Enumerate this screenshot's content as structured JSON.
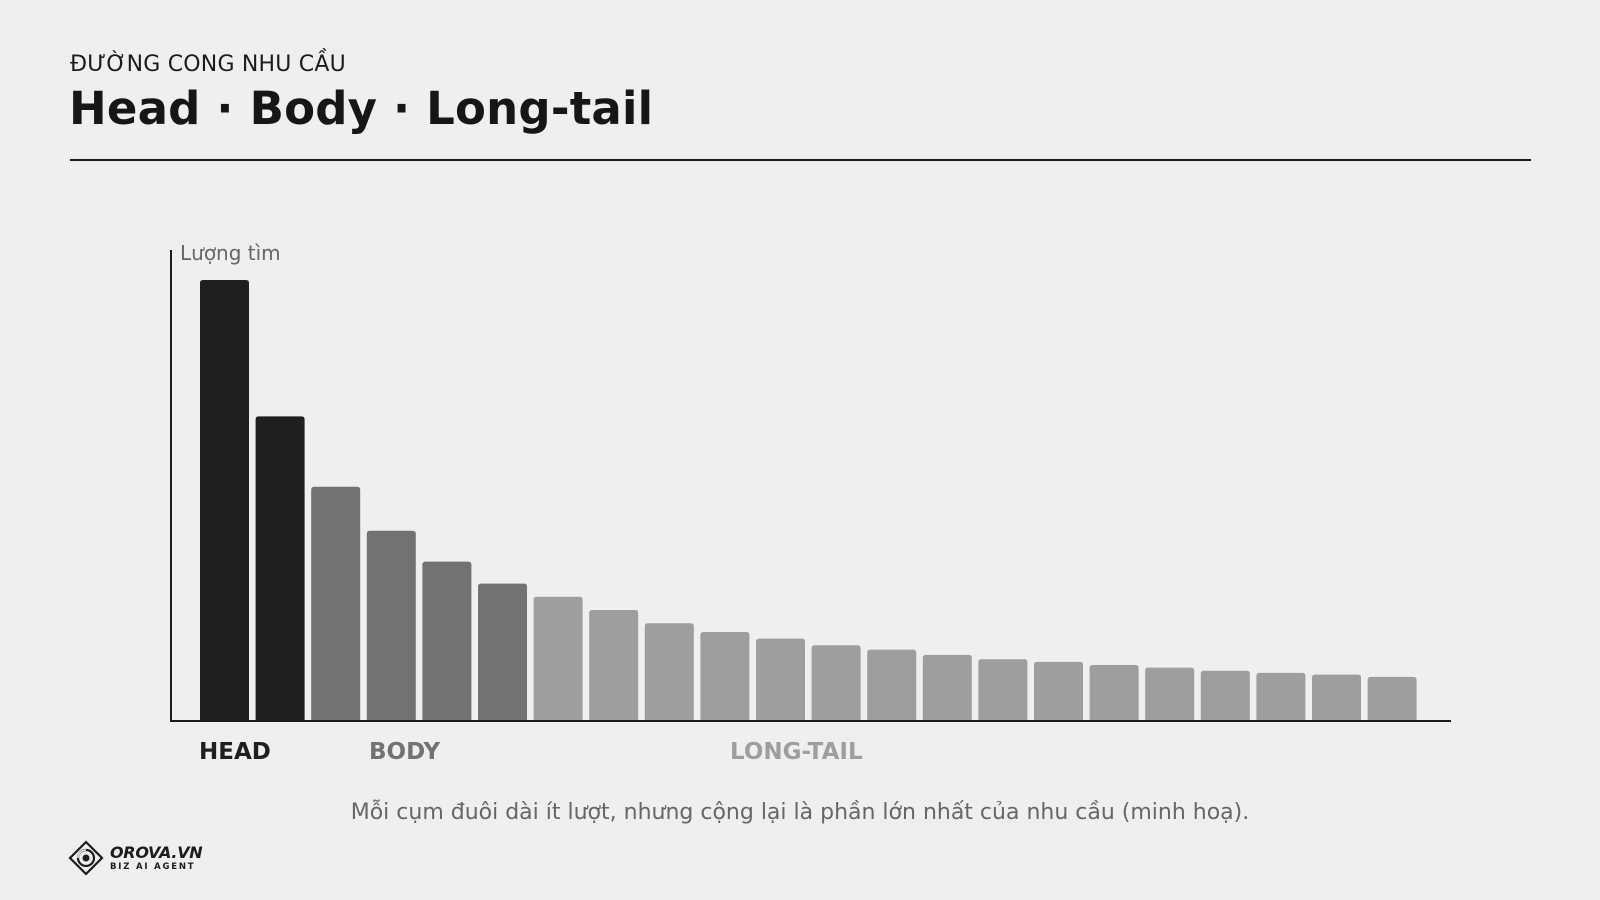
{
  "header": {
    "eyebrow": "ĐƯỜNG CONG NHU CẦU",
    "title": "Head · Body · Long-tail"
  },
  "chart_data": {
    "type": "bar",
    "title": "",
    "xlabel": "",
    "ylabel": "Lượng tìm",
    "values": [
      100,
      69,
      53,
      43,
      36,
      31,
      28,
      25,
      22,
      20,
      18.5,
      17,
      16,
      14.8,
      13.8,
      13.2,
      12.5,
      11.9,
      11.2,
      10.7,
      10.3,
      9.8
    ],
    "segments": [
      {
        "label": "HEAD",
        "start": 0,
        "end": 1,
        "color": "#1f1f1f"
      },
      {
        "label": "BODY",
        "start": 2,
        "end": 5,
        "color": "#727272"
      },
      {
        "label": "LONG-TAIL",
        "start": 6,
        "end": 21,
        "color": "#9e9e9e"
      }
    ],
    "ylim": [
      0,
      100
    ],
    "grid": false
  },
  "caption": "Mỗi cụm đuôi dài ít lượt, nhưng cộng lại là phần lớn nhất của nhu cầu (minh hoạ).",
  "logo": {
    "name": "OROVA.VN",
    "tagline": "BIZ AI AGENT"
  }
}
